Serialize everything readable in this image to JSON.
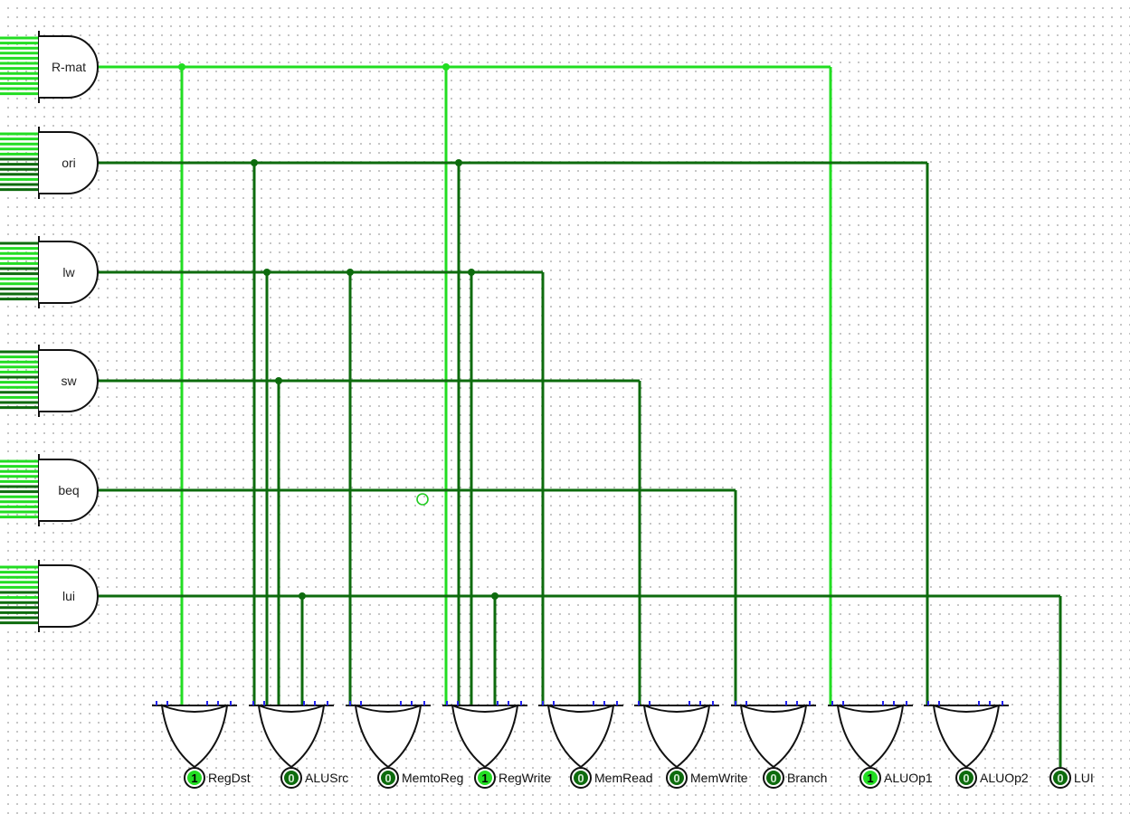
{
  "colors": {
    "wire_on": "#22dd22",
    "wire_off": "#0d6b0d",
    "gate_stroke": "#111111",
    "pin_on_fill": "#22dd22",
    "pin_off_fill": "#0d6b0d",
    "pin_fg": "#000000",
    "inverter_bubble": "#2222ee",
    "probe": "#22cc22"
  },
  "and_gates": [
    {
      "label": "R-mat",
      "active": true,
      "inputs": [
        1,
        1,
        1,
        1,
        1,
        1,
        1,
        1,
        1,
        1,
        1,
        1
      ]
    },
    {
      "label": "ori",
      "active": false,
      "inputs": [
        1,
        1,
        1,
        1,
        1,
        0,
        0,
        0,
        0,
        1,
        0,
        0
      ]
    },
    {
      "label": "lw",
      "active": false,
      "inputs": [
        0,
        1,
        1,
        1,
        1,
        0,
        0,
        1,
        1,
        0,
        0,
        0
      ]
    },
    {
      "label": "sw",
      "active": false,
      "inputs": [
        0,
        1,
        1,
        1,
        1,
        0,
        1,
        1,
        0,
        1,
        0,
        0
      ]
    },
    {
      "label": "beq",
      "active": false,
      "inputs": [
        1,
        1,
        1,
        1,
        1,
        0,
        0,
        1,
        1,
        1,
        1,
        1
      ]
    },
    {
      "label": "lui",
      "active": false,
      "inputs": [
        1,
        1,
        1,
        1,
        1,
        0,
        1,
        0,
        0,
        0,
        0,
        0
      ]
    }
  ],
  "outputs": [
    {
      "label": "RegDst",
      "value": "1",
      "active": true
    },
    {
      "label": "ALUSrc",
      "value": "0",
      "active": false
    },
    {
      "label": "MemtoReg",
      "value": "0",
      "active": false
    },
    {
      "label": "RegWrite",
      "value": "1",
      "active": true
    },
    {
      "label": "MemRead",
      "value": "0",
      "active": false
    },
    {
      "label": "MemWrite",
      "value": "0",
      "active": false
    },
    {
      "label": "Branch",
      "value": "0",
      "active": false
    },
    {
      "label": "ALUOp1",
      "value": "1",
      "active": true
    },
    {
      "label": "ALUOp2",
      "value": "0",
      "active": false
    },
    {
      "label": "LUI",
      "value": "0",
      "active": false
    }
  ],
  "connections": {
    "RegDst": [
      "R-mat"
    ],
    "ALUSrc": [
      "ori",
      "lw",
      "sw",
      "lui"
    ],
    "MemtoReg": [
      "lw"
    ],
    "RegWrite": [
      "R-mat",
      "ori",
      "lw",
      "lui"
    ],
    "MemRead": [
      "lw"
    ],
    "MemWrite": [
      "sw"
    ],
    "Branch": [
      "beq"
    ],
    "ALUOp1": [
      "R-mat"
    ],
    "ALUOp2": [
      "ori"
    ],
    "LUI": [
      "lui"
    ]
  }
}
